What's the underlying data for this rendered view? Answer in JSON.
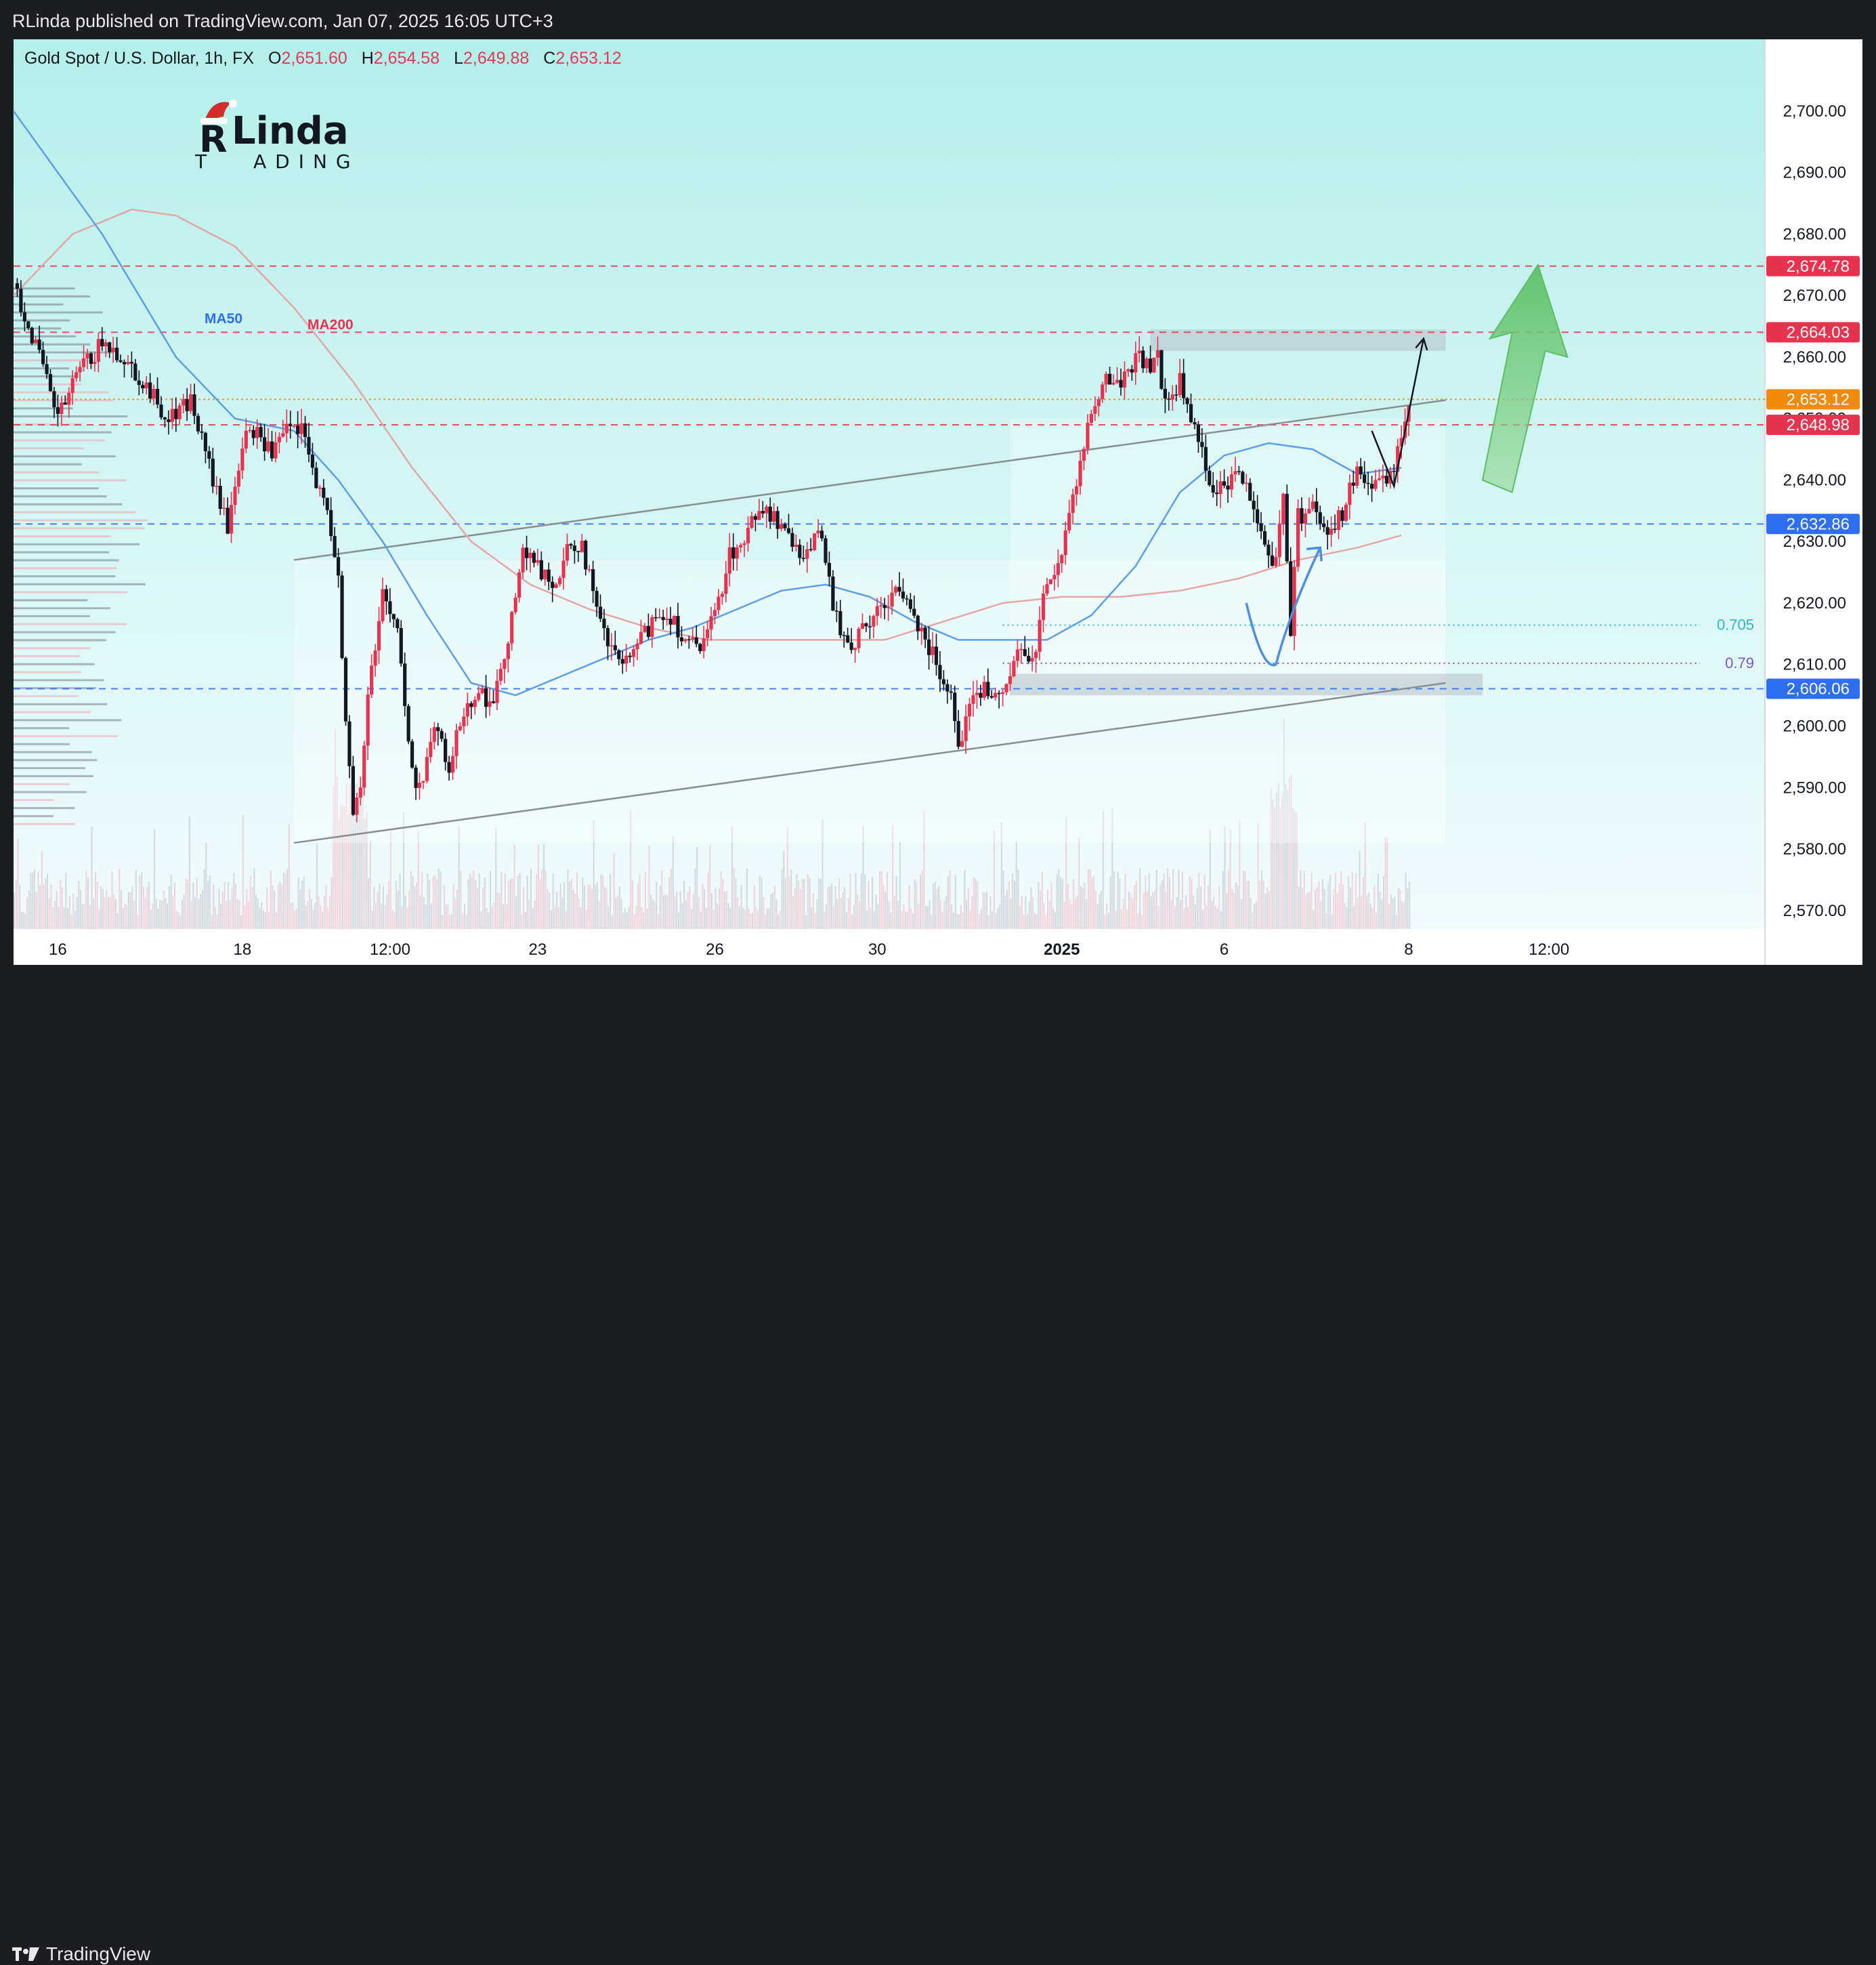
{
  "header": {
    "published": "RLinda published on TradingView.com, Jan 07, 2025 16:05 UTC+3"
  },
  "symbol": {
    "name": "Gold Spot / U.S. Dollar, 1h, FX",
    "o_label": "O",
    "o": "2,651.60",
    "h_label": "H",
    "h": "2,654.58",
    "l_label": "L",
    "l": "2,649.88",
    "c_label": "C",
    "c": "2,653.12"
  },
  "logo": {
    "name": "Linda",
    "sub": "ADING",
    "letter_r": "R",
    "letter_t": "T"
  },
  "footer": {
    "brand": "TradingView"
  },
  "colors": {
    "background_top": "#b4efea",
    "background_bottom": "#f2fbfd",
    "up": "#e8334e",
    "down": "#131722",
    "ma50": "#5d9ee8",
    "ma200": "#e6a6a6",
    "resistance": "#e8334e",
    "support": "#2e6ef0",
    "current": "#f28b0c",
    "target_arrow": "#6bc56f"
  },
  "chart_data": {
    "type": "candlestick",
    "symbol": "XAUUSD",
    "timeframe": "1h",
    "ylim": [
      2567,
      2712
    ],
    "y_ticks": [
      2570,
      2580,
      2590,
      2600,
      2610,
      2620,
      2630,
      2640,
      2650,
      2660,
      2670,
      2680,
      2690,
      2700
    ],
    "y_tick_labels": [
      "2,570.00",
      "2,580.00",
      "2,590.00",
      "2,600.00",
      "2,610.00",
      "2,620.00",
      "2,630.00",
      "2,640.00",
      "2,650.00",
      "2,660.00",
      "2,670.00",
      "2,680.00",
      "2,690.00",
      "2,700.00"
    ],
    "x_ticks": [
      {
        "label": "16",
        "t": 6
      },
      {
        "label": "18",
        "t": 31
      },
      {
        "label": "12:00",
        "t": 51
      },
      {
        "label": "23",
        "t": 71
      },
      {
        "label": "26",
        "t": 95
      },
      {
        "label": "30",
        "t": 117
      },
      {
        "label": "2025",
        "t": 142,
        "bold": true
      },
      {
        "label": "6",
        "t": 164
      },
      {
        "label": "8",
        "t": 189
      },
      {
        "label": "12:00",
        "t": 208
      }
    ],
    "series_price": [
      [
        0,
        2672
      ],
      [
        3,
        2662
      ],
      [
        6,
        2650
      ],
      [
        9,
        2658
      ],
      [
        12,
        2662
      ],
      [
        15,
        2660
      ],
      [
        18,
        2655
      ],
      [
        21,
        2650
      ],
      [
        24,
        2653
      ],
      [
        27,
        2640
      ],
      [
        29,
        2632
      ],
      [
        31,
        2646
      ],
      [
        33,
        2648
      ],
      [
        35,
        2644
      ],
      [
        37,
        2648
      ],
      [
        39,
        2648
      ],
      [
        41,
        2640
      ],
      [
        43,
        2632
      ],
      [
        44,
        2625
      ],
      [
        45,
        2600
      ],
      [
        46,
        2585
      ],
      [
        47,
        2590
      ],
      [
        48,
        2605
      ],
      [
        50,
        2622
      ],
      [
        52,
        2616
      ],
      [
        53,
        2603
      ],
      [
        54,
        2592
      ],
      [
        55,
        2590
      ],
      [
        57,
        2600
      ],
      [
        59,
        2593
      ],
      [
        61,
        2603
      ],
      [
        63,
        2606
      ],
      [
        65,
        2603
      ],
      [
        67,
        2615
      ],
      [
        69,
        2628
      ],
      [
        71,
        2626
      ],
      [
        73,
        2622
      ],
      [
        75,
        2628
      ],
      [
        77,
        2630
      ],
      [
        79,
        2618
      ],
      [
        81,
        2612
      ],
      [
        83,
        2610
      ],
      [
        85,
        2614
      ],
      [
        87,
        2618
      ],
      [
        89,
        2618
      ],
      [
        91,
        2614
      ],
      [
        93,
        2612
      ],
      [
        95,
        2618
      ],
      [
        97,
        2628
      ],
      [
        99,
        2630
      ],
      [
        101,
        2636
      ],
      [
        103,
        2634
      ],
      [
        105,
        2630
      ],
      [
        107,
        2628
      ],
      [
        109,
        2632
      ],
      [
        111,
        2620
      ],
      [
        113,
        2612
      ],
      [
        115,
        2616
      ],
      [
        117,
        2618
      ],
      [
        119,
        2622
      ],
      [
        121,
        2620
      ],
      [
        123,
        2616
      ],
      [
        125,
        2610
      ],
      [
        127,
        2606
      ],
      [
        128,
        2597
      ],
      [
        130,
        2605
      ],
      [
        132,
        2606
      ],
      [
        134,
        2604
      ],
      [
        136,
        2612
      ],
      [
        138,
        2610
      ],
      [
        140,
        2624
      ],
      [
        142,
        2628
      ],
      [
        144,
        2640
      ],
      [
        146,
        2652
      ],
      [
        148,
        2656
      ],
      [
        150,
        2656
      ],
      [
        152,
        2660
      ],
      [
        154,
        2659
      ],
      [
        155,
        2660
      ],
      [
        156,
        2652
      ],
      [
        158,
        2656
      ],
      [
        160,
        2648
      ],
      [
        162,
        2640
      ],
      [
        164,
        2638
      ],
      [
        166,
        2642
      ],
      [
        168,
        2636
      ],
      [
        170,
        2628
      ],
      [
        171,
        2627
      ],
      [
        172,
        2638
      ],
      [
        173,
        2616
      ],
      [
        174,
        2634
      ],
      [
        176,
        2636
      ],
      [
        178,
        2632
      ],
      [
        180,
        2634
      ],
      [
        182,
        2642
      ],
      [
        184,
        2638
      ],
      [
        186,
        2640
      ],
      [
        187,
        2642
      ],
      [
        188,
        2648
      ],
      [
        189,
        2653
      ]
    ],
    "ma50": [
      [
        0,
        2700
      ],
      [
        12,
        2680
      ],
      [
        22,
        2660
      ],
      [
        30,
        2650
      ],
      [
        38,
        2648
      ],
      [
        44,
        2640
      ],
      [
        50,
        2630
      ],
      [
        56,
        2618
      ],
      [
        62,
        2607
      ],
      [
        68,
        2605
      ],
      [
        74,
        2608
      ],
      [
        80,
        2611
      ],
      [
        86,
        2614
      ],
      [
        92,
        2616
      ],
      [
        98,
        2619
      ],
      [
        104,
        2622
      ],
      [
        110,
        2623
      ],
      [
        116,
        2621
      ],
      [
        122,
        2617
      ],
      [
        128,
        2614
      ],
      [
        134,
        2614
      ],
      [
        140,
        2614
      ],
      [
        146,
        2618
      ],
      [
        152,
        2626
      ],
      [
        158,
        2638
      ],
      [
        164,
        2644
      ],
      [
        170,
        2646
      ],
      [
        176,
        2645
      ],
      [
        182,
        2641
      ],
      [
        188,
        2642
      ]
    ],
    "ma200": [
      [
        0,
        2670
      ],
      [
        8,
        2680
      ],
      [
        16,
        2684
      ],
      [
        22,
        2683
      ],
      [
        30,
        2678
      ],
      [
        38,
        2668
      ],
      [
        46,
        2656
      ],
      [
        54,
        2642
      ],
      [
        62,
        2630
      ],
      [
        70,
        2623
      ],
      [
        78,
        2619
      ],
      [
        86,
        2616
      ],
      [
        94,
        2614
      ],
      [
        102,
        2614
      ],
      [
        110,
        2614
      ],
      [
        118,
        2614
      ],
      [
        126,
        2617
      ],
      [
        134,
        2620
      ],
      [
        142,
        2621
      ],
      [
        150,
        2621
      ],
      [
        158,
        2622
      ],
      [
        166,
        2624
      ],
      [
        174,
        2627
      ],
      [
        182,
        2629
      ],
      [
        188,
        2631
      ]
    ],
    "levels": [
      {
        "value": 2674.78,
        "label": "2,674.78",
        "style": "dashed",
        "color": "#e8334e"
      },
      {
        "value": 2664.03,
        "label": "2,664.03",
        "style": "dashed",
        "color": "#e8334e"
      },
      {
        "value": 2653.12,
        "label": "2,653.12",
        "style": "dotted",
        "color": "#f28b0c"
      },
      {
        "value": 2648.98,
        "label": "2,648.98",
        "style": "dashed",
        "color": "#e8334e"
      },
      {
        "value": 2632.86,
        "label": "2,632.86",
        "style": "dashed",
        "color": "#2e6ef0"
      },
      {
        "value": 2606.06,
        "label": "2,606.06",
        "style": "dashed",
        "color": "#2e6ef0"
      }
    ],
    "fib_levels": [
      {
        "label": "0.705",
        "value": 2616.4,
        "color": "#2fb7c4"
      },
      {
        "label": "0.79",
        "value": 2610.2,
        "color": "#7a57c9"
      }
    ],
    "channel": {
      "upper": [
        [
          38,
          2627
        ],
        [
          194,
          2653
        ]
      ],
      "lower": [
        [
          38,
          2581
        ],
        [
          194,
          2607
        ]
      ]
    },
    "zones": [
      {
        "t1": 154,
        "t2": 194,
        "y1": 2661,
        "y2": 2664.5
      },
      {
        "t1": 135,
        "t2": 199,
        "y1": 2605,
        "y2": 2608.5
      }
    ],
    "annotations": [
      {
        "label": "MA50",
        "color": "#2e6ef0"
      },
      {
        "label": "MA200",
        "color": "#e8334e"
      }
    ],
    "forecast_path": [
      [
        184,
        2648
      ],
      [
        187,
        2639
      ],
      [
        191,
        2663
      ]
    ],
    "bounce_curve": [
      [
        167,
        2620
      ],
      [
        171,
        2610
      ],
      [
        173,
        2620
      ],
      [
        177,
        2629
      ]
    ]
  }
}
